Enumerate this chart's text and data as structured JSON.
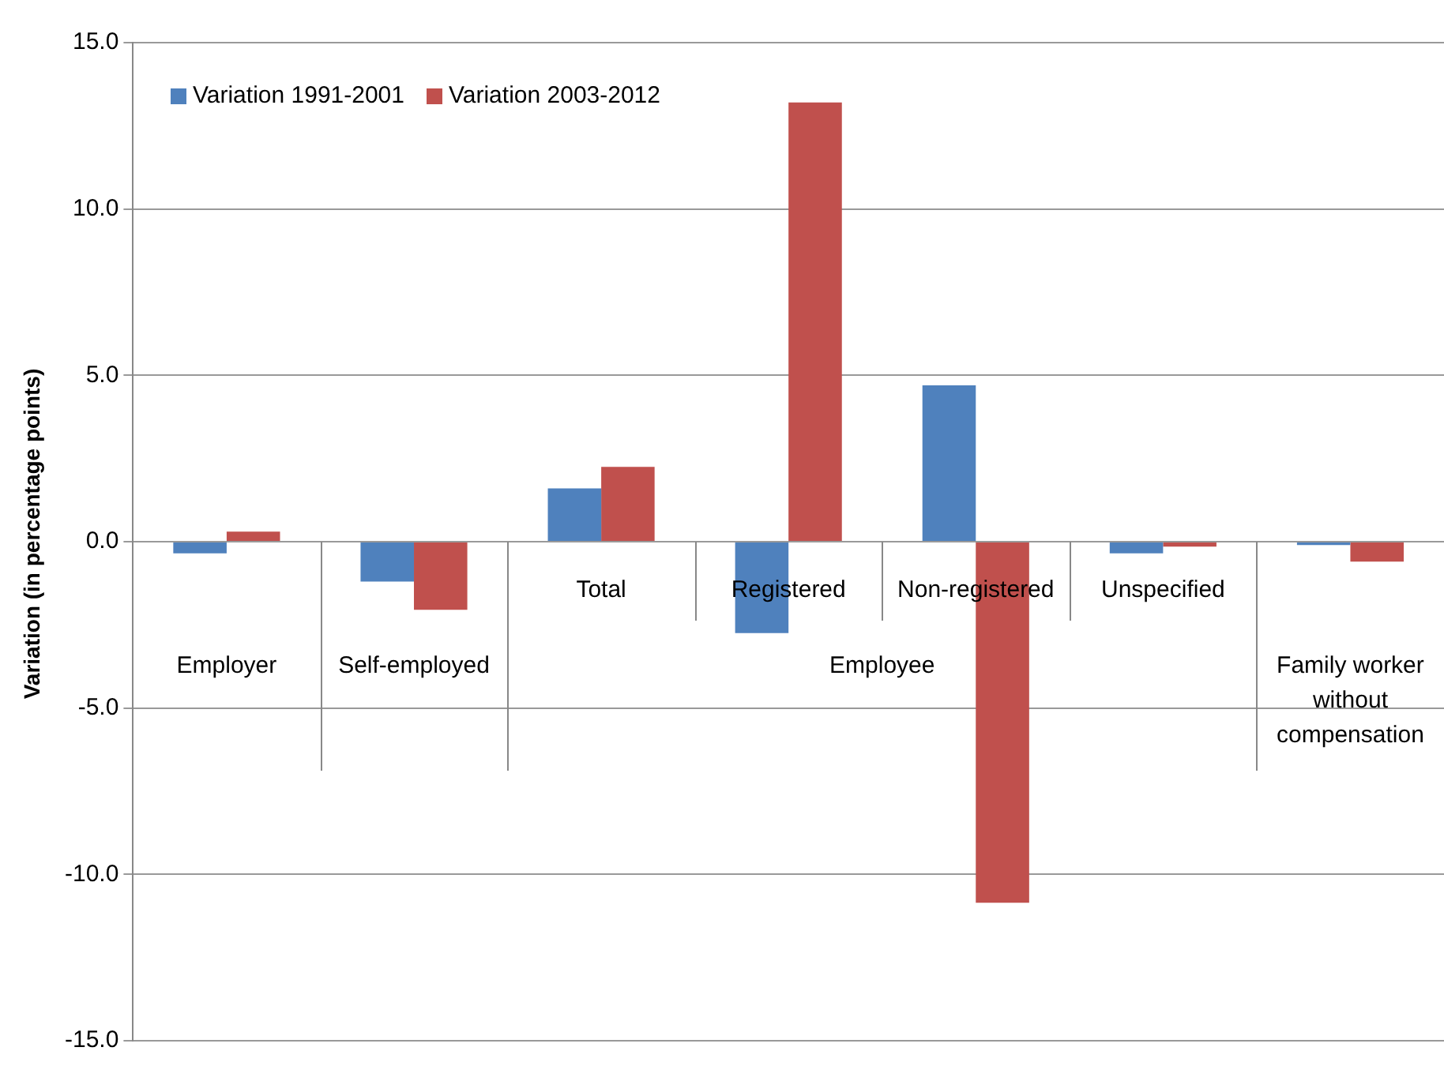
{
  "chart_data": {
    "type": "bar",
    "ylabel": "Variation (in percentage points)",
    "categories": [
      "Employer",
      "Self-employed",
      "Total",
      "Registered",
      "Non-registered",
      "Unspecified",
      "Family worker without compensation"
    ],
    "series": [
      {
        "name": "Variation 1991-2001",
        "color": "#4f81bd",
        "values": [
          -0.35,
          -1.2,
          1.6,
          -2.75,
          4.7,
          -0.35,
          -0.1
        ]
      },
      {
        "name": "Variation 2003-2012",
        "color": "#c0504d",
        "values": [
          0.3,
          -2.05,
          2.25,
          13.2,
          -10.85,
          -0.15,
          -0.6
        ]
      }
    ],
    "annotations": [
      "Employee"
    ],
    "ylim": [
      -15,
      15
    ],
    "yticks": [
      {
        "value": -15,
        "label": "-15.0"
      },
      {
        "value": -10,
        "label": "-10.0"
      },
      {
        "value": -5,
        "label": "-5.0"
      },
      {
        "value": 0,
        "label": "0.0"
      },
      {
        "value": 5,
        "label": "5.0"
      },
      {
        "value": 10,
        "label": "10.0"
      },
      {
        "value": 15,
        "label": "15.0"
      }
    ],
    "grid": "y",
    "legend": "top left"
  }
}
